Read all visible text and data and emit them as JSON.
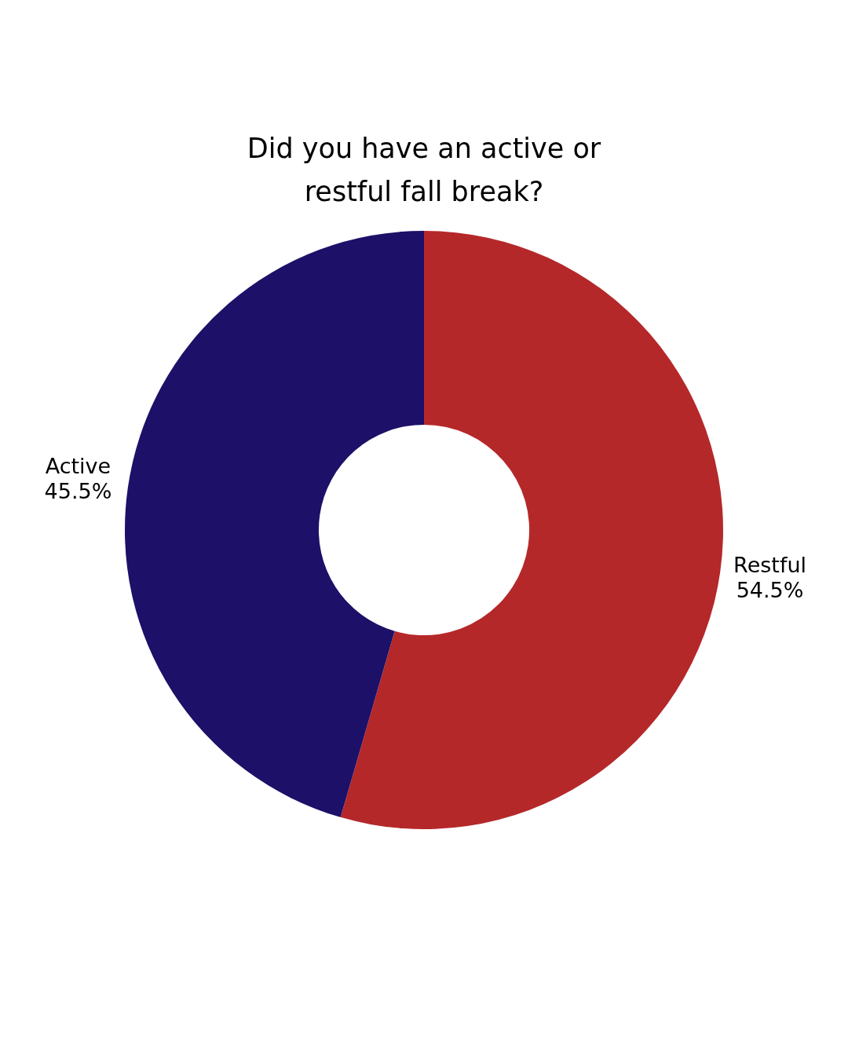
{
  "chart_data": {
    "type": "donut",
    "title": "Did you have an active or restful fall break?",
    "categories": [
      "Restful",
      "Active"
    ],
    "values": [
      54.5,
      45.5
    ],
    "colors": [
      "#b5282a",
      "#1c1068"
    ],
    "value_labels": [
      "54.5%",
      "45.5%"
    ],
    "legend": false
  }
}
